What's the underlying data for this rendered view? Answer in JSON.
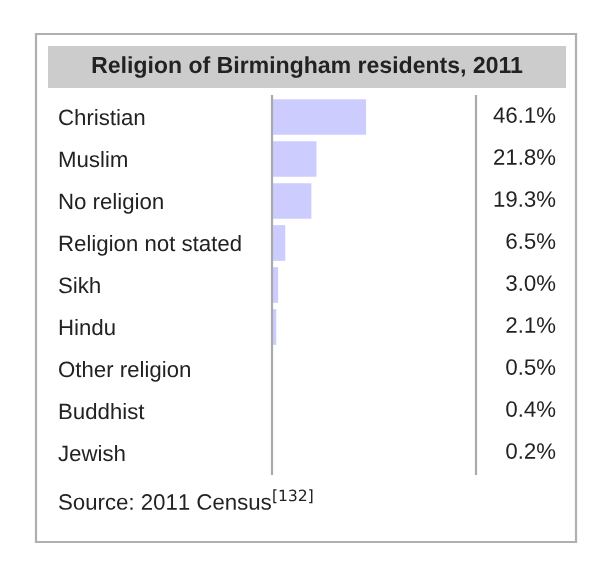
{
  "chart_data": {
    "type": "bar",
    "orientation": "horizontal",
    "title": "Religion of Birmingham residents, 2011",
    "categories": [
      "Christian",
      "Muslim",
      "No religion",
      "Religion not stated",
      "Sikh",
      "Hindu",
      "Other religion",
      "Buddhist",
      "Jewish"
    ],
    "values": [
      46.1,
      21.8,
      19.3,
      6.5,
      3.0,
      2.1,
      0.5,
      0.4,
      0.2
    ],
    "value_labels": [
      "46.1%",
      "21.8%",
      "19.3%",
      "6.5%",
      "3.0%",
      "2.1%",
      "0.5%",
      "0.4%",
      "0.2%"
    ],
    "color": "#ccccff",
    "xlim": [
      0,
      100
    ],
    "grid": false,
    "legend": false,
    "tick_labels": "y",
    "annotations": [
      "Source: 2011 Census$^{[132]}$"
    ]
  }
}
